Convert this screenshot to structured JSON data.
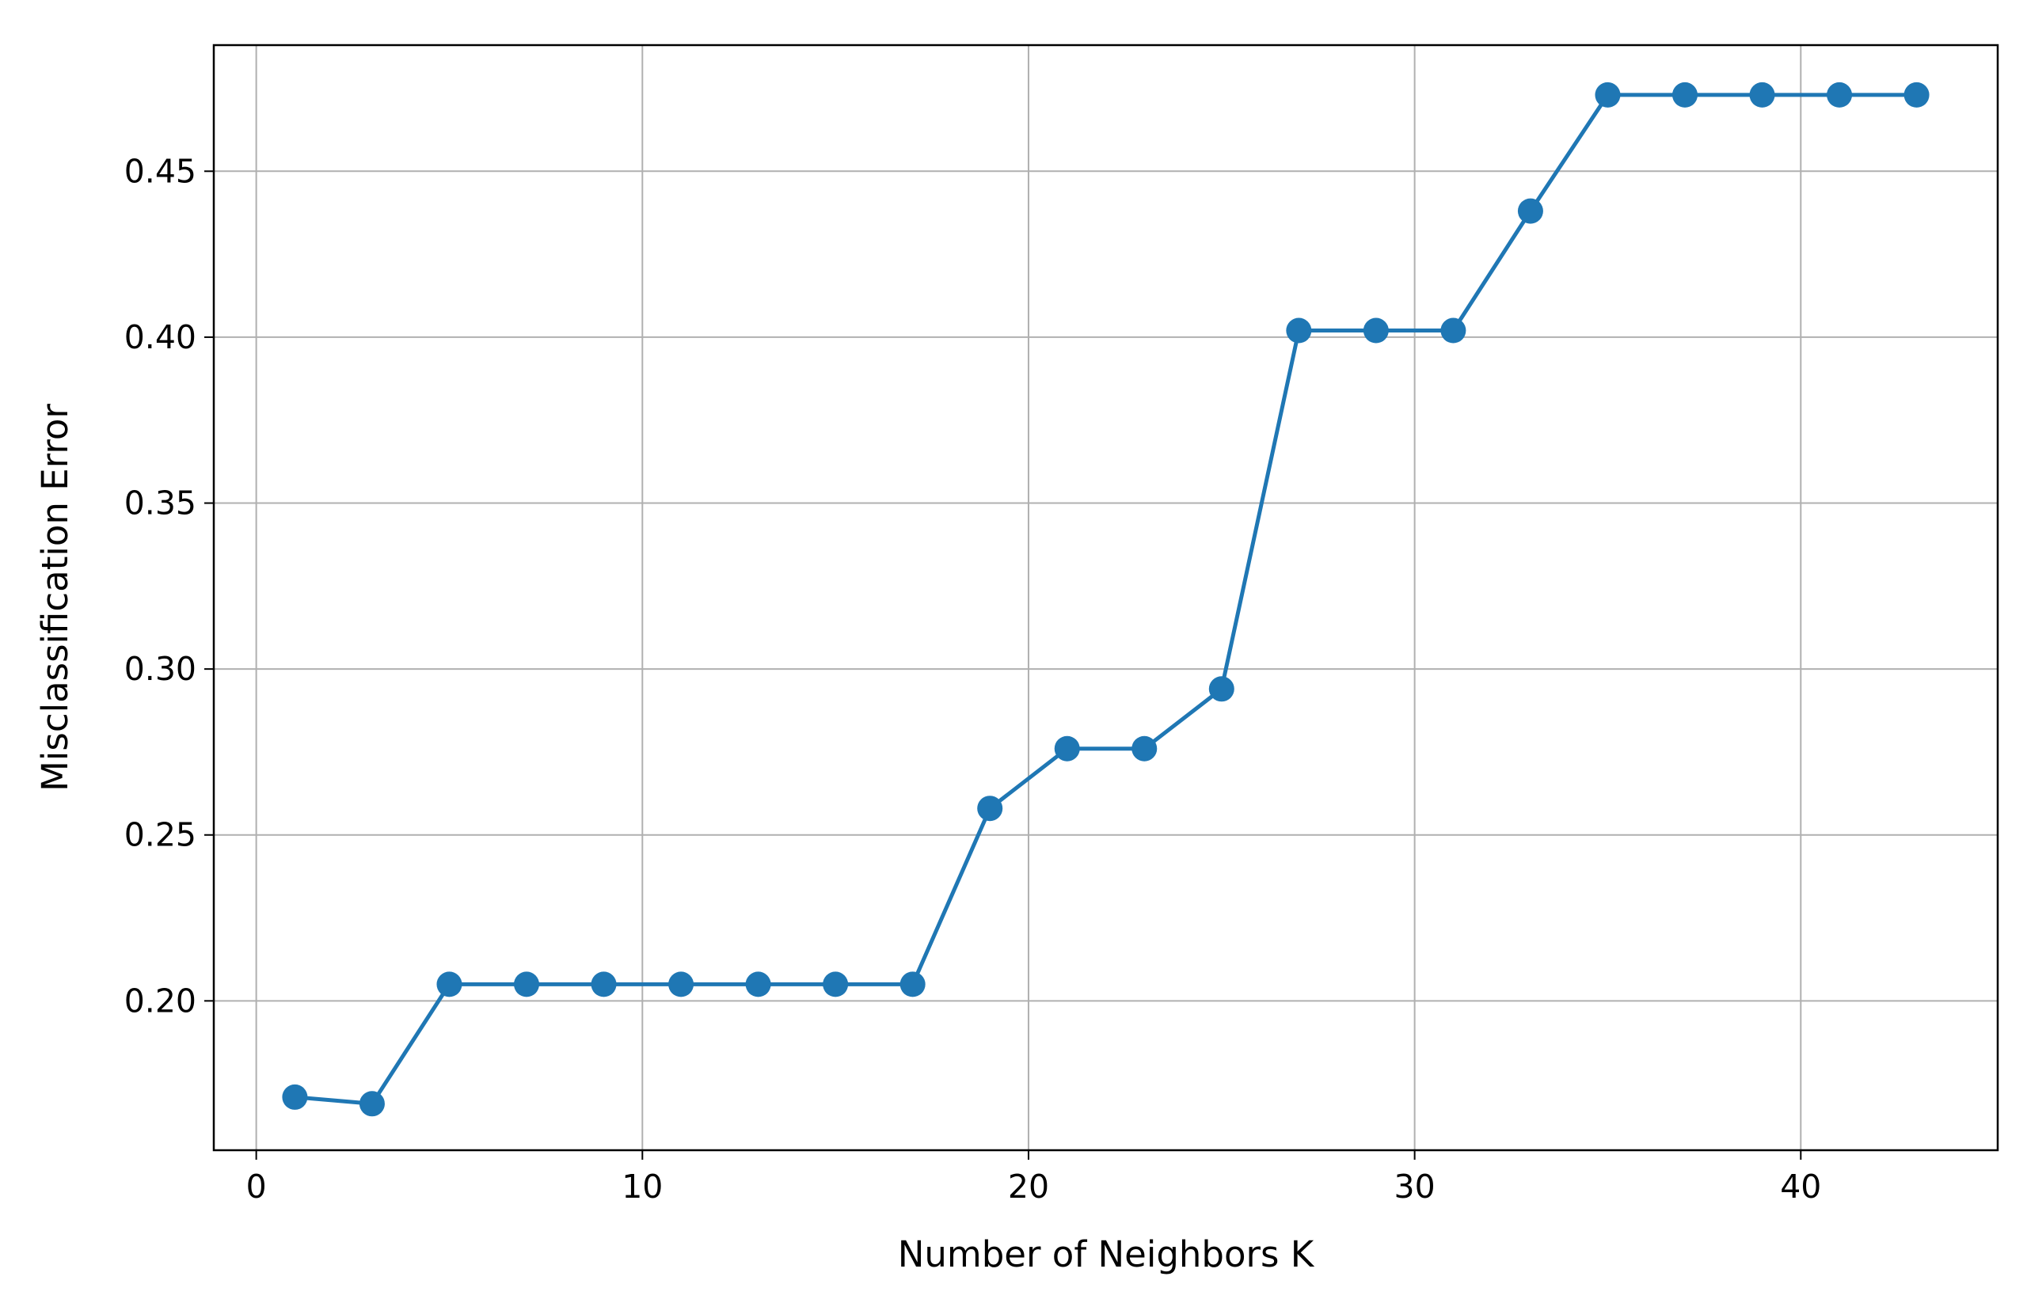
{
  "chart_data": {
    "type": "line",
    "title": "",
    "xlabel": "Number of Neighbors K",
    "ylabel": "Misclassification Error",
    "xlim": [
      -1.1,
      45.1
    ],
    "ylim": [
      0.155,
      0.488
    ],
    "x_ticks": [
      0,
      10,
      20,
      30,
      40
    ],
    "x_tick_labels": [
      "0",
      "10",
      "20",
      "30",
      "40"
    ],
    "y_ticks": [
      0.2,
      0.25,
      0.3,
      0.35,
      0.4,
      0.45
    ],
    "y_tick_labels": [
      "0.20",
      "0.25",
      "0.30",
      "0.35",
      "0.40",
      "0.45"
    ],
    "grid": true,
    "line_color": "#1f77b4",
    "marker": "circle",
    "series": [
      {
        "x": [
          1,
          3,
          5,
          7,
          9,
          11,
          13,
          15,
          17,
          19,
          21,
          23,
          25,
          27,
          29,
          31,
          33,
          35,
          37,
          39,
          41,
          43
        ],
        "values": [
          0.171,
          0.169,
          0.205,
          0.205,
          0.205,
          0.205,
          0.205,
          0.205,
          0.205,
          0.258,
          0.276,
          0.276,
          0.294,
          0.402,
          0.402,
          0.402,
          0.438,
          0.473,
          0.473,
          0.473,
          0.473,
          0.473
        ]
      }
    ]
  }
}
